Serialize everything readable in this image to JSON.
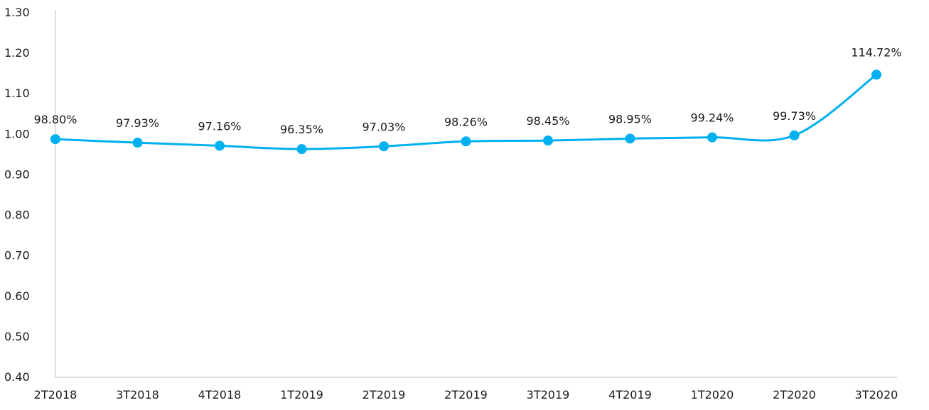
{
  "chart_data": {
    "type": "line",
    "title": "",
    "xlabel": "",
    "ylabel": "",
    "categories": [
      "2T2018",
      "3T2018",
      "4T2018",
      "1T2019",
      "2T2019",
      "2T2019",
      "3T2019",
      "4T2019",
      "1T2020",
      "2T2020",
      "3T2020"
    ],
    "series": [
      {
        "values": [
          0.988,
          0.9793,
          0.9716,
          0.9635,
          0.9703,
          0.9826,
          0.9845,
          0.9895,
          0.9924,
          0.9973,
          1.1472
        ],
        "labels": [
          "98.80%",
          "97.93%",
          "97.16%",
          "96.35%",
          "97.03%",
          "98.26%",
          "98.45%",
          "98.95%",
          "99.24%",
          "99.73%",
          "114.72%"
        ],
        "color": "#00b0f0"
      }
    ],
    "ylim": [
      0.4,
      1.3
    ],
    "yticks": [
      "0.40",
      "0.50",
      "0.60",
      "0.70",
      "0.80",
      "0.90",
      "1.00",
      "1.10",
      "1.20",
      "1.30"
    ],
    "grid": false,
    "legend": "none",
    "smooth": true,
    "axis_color": "#bfbfbf"
  }
}
